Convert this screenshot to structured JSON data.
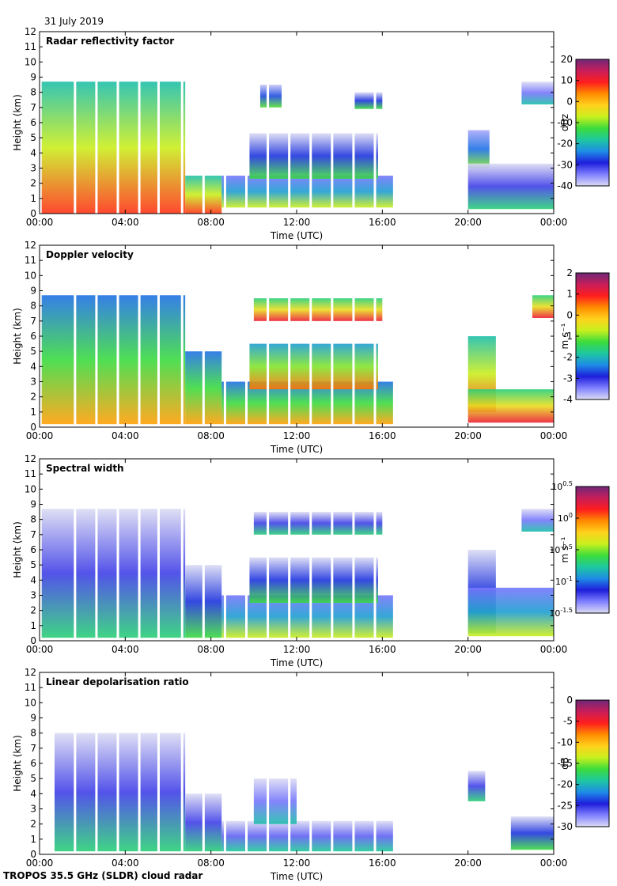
{
  "header": {
    "date": "31 July 2019"
  },
  "footer": {
    "instrument": "TROPOS 35.5 GHz (SLDR) cloud radar"
  },
  "colors": {
    "background": "#ffffff",
    "no_signal_grey": "#dcdcdc",
    "axis": "#000000"
  },
  "chart_data": [
    {
      "type": "heatmap",
      "title": "Radar reflectivity factor",
      "xlabel": "Time (UTC)",
      "ylabel": "Height (km)",
      "xlim": [
        0,
        24
      ],
      "ylim": [
        0,
        12
      ],
      "x_ticks": [
        "00:00",
        "04:00",
        "08:00",
        "12:00",
        "16:00",
        "20:00",
        "00:00"
      ],
      "y_ticks": [
        "0",
        "1",
        "2",
        "3",
        "4",
        "5",
        "6",
        "7",
        "8",
        "9",
        "10",
        "11",
        "12"
      ],
      "colorbar": {
        "label": "dBz",
        "range": [
          -40,
          20
        ],
        "ticks": [
          "20",
          "10",
          "0",
          "-10",
          "-20",
          "-30",
          "-40"
        ]
      },
      "cloud_regions": [
        {
          "t0": 0.1,
          "t1": 6.8,
          "base": 0.0,
          "top": 8.7,
          "value": 0.55
        },
        {
          "t0": 6.8,
          "t1": 8.5,
          "base": 0.0,
          "top": 2.5,
          "value": 0.55
        },
        {
          "t0": 8.5,
          "t1": 16.5,
          "base": 0.4,
          "top": 2.5,
          "value": 0.3
        },
        {
          "t0": 9.8,
          "t1": 15.8,
          "base": 2.3,
          "top": 5.3,
          "value": 0.2
        },
        {
          "t0": 10.3,
          "t1": 11.3,
          "base": 7.0,
          "top": 8.5,
          "value": 0.22
        },
        {
          "t0": 14.7,
          "t1": 16.0,
          "base": 6.9,
          "top": 8.0,
          "value": 0.2
        },
        {
          "t0": 20.0,
          "t1": 21.0,
          "base": 3.0,
          "top": 5.5,
          "value": 0.25
        },
        {
          "t0": 20.0,
          "t1": 24.0,
          "base": 0.3,
          "top": 3.3,
          "value": 0.15
        },
        {
          "t0": 22.5,
          "t1": 24.0,
          "base": 7.2,
          "top": 8.7,
          "value": 0.1
        }
      ]
    },
    {
      "type": "heatmap",
      "title": "Doppler velocity",
      "xlabel": "Time (UTC)",
      "ylabel": "Height (km)",
      "xlim": [
        0,
        24
      ],
      "ylim": [
        0,
        12
      ],
      "x_ticks": [
        "00:00",
        "04:00",
        "08:00",
        "12:00",
        "16:00",
        "20:00",
        "00:00"
      ],
      "y_ticks": [
        "0",
        "1",
        "2",
        "3",
        "4",
        "5",
        "6",
        "7",
        "8",
        "9",
        "10",
        "11",
        "12"
      ],
      "colorbar": {
        "label": "m s⁻¹",
        "range": [
          -4,
          2
        ],
        "ticks": [
          "2",
          "1",
          "0",
          "-1",
          "-2",
          "-3",
          "-4"
        ]
      },
      "cloud_regions": [
        {
          "t0": 0.1,
          "t1": 6.8,
          "base": 0.2,
          "top": 8.7,
          "value": 0.45
        },
        {
          "t0": 6.8,
          "t1": 8.5,
          "base": 0.2,
          "top": 5.0,
          "value": 0.45
        },
        {
          "t0": 8.5,
          "t1": 16.5,
          "base": 0.2,
          "top": 3.0,
          "value": 0.45
        },
        {
          "t0": 9.8,
          "t1": 15.8,
          "base": 2.5,
          "top": 5.5,
          "value": 0.5
        },
        {
          "t0": 10.0,
          "t1": 16.0,
          "base": 7.0,
          "top": 8.5,
          "value": 0.6
        },
        {
          "t0": 20.0,
          "t1": 21.3,
          "base": 1.0,
          "top": 6.0,
          "value": 0.55
        },
        {
          "t0": 20.0,
          "t1": 24.0,
          "base": 0.3,
          "top": 2.5,
          "value": 0.6
        },
        {
          "t0": 23.0,
          "t1": 24.0,
          "base": 7.2,
          "top": 8.7,
          "value": 0.6
        }
      ]
    },
    {
      "type": "heatmap",
      "title": "Spectral width",
      "xlabel": "Time (UTC)",
      "ylabel": "Height (km)",
      "xlim": [
        0,
        24
      ],
      "ylim": [
        0,
        12
      ],
      "x_ticks": [
        "00:00",
        "04:00",
        "08:00",
        "12:00",
        "16:00",
        "20:00",
        "00:00"
      ],
      "y_ticks": [
        "0",
        "1",
        "2",
        "3",
        "4",
        "5",
        "6",
        "7",
        "8",
        "9",
        "10",
        "11",
        "12"
      ],
      "colorbar": {
        "label": "m s⁻¹",
        "range": [
          -1.5,
          0.5
        ],
        "scale": "log10",
        "ticks": [
          {
            "base": "10",
            "exp": "0.5"
          },
          {
            "base": "10",
            "exp": "0"
          },
          {
            "base": "10",
            "exp": "-0.5"
          },
          {
            "base": "10",
            "exp": "-1"
          },
          {
            "base": "10",
            "exp": "-1.5"
          }
        ]
      },
      "cloud_regions": [
        {
          "t0": 0.1,
          "t1": 6.8,
          "base": 0.2,
          "top": 8.7,
          "value": 0.15
        },
        {
          "t0": 6.8,
          "t1": 8.5,
          "base": 0.2,
          "top": 5.0,
          "value": 0.2
        },
        {
          "t0": 8.5,
          "t1": 16.5,
          "base": 0.2,
          "top": 3.0,
          "value": 0.3
        },
        {
          "t0": 9.8,
          "t1": 15.8,
          "base": 2.5,
          "top": 5.5,
          "value": 0.2
        },
        {
          "t0": 10.0,
          "t1": 16.0,
          "base": 7.0,
          "top": 8.5,
          "value": 0.15
        },
        {
          "t0": 20.0,
          "t1": 21.3,
          "base": 0.5,
          "top": 6.0,
          "value": 0.2
        },
        {
          "t0": 20.0,
          "t1": 24.0,
          "base": 0.3,
          "top": 3.5,
          "value": 0.3
        },
        {
          "t0": 22.5,
          "t1": 24.0,
          "base": 7.2,
          "top": 8.7,
          "value": 0.1
        }
      ]
    },
    {
      "type": "heatmap",
      "title": "Linear depolarisation ratio",
      "xlabel": "Time (UTC)",
      "ylabel": "Height (km)",
      "xlim": [
        0,
        24
      ],
      "ylim": [
        0,
        12
      ],
      "x_ticks": [
        "00:00",
        "04:00",
        "08:00",
        "12:00",
        "16:00",
        "20:00",
        "00:00"
      ],
      "y_ticks": [
        "0",
        "1",
        "2",
        "3",
        "4",
        "5",
        "6",
        "7",
        "8",
        "9",
        "10",
        "11",
        "12"
      ],
      "colorbar": {
        "label": "dB",
        "range": [
          -30,
          0
        ],
        "ticks": [
          "0",
          "-5",
          "-10",
          "-15",
          "-20",
          "-25",
          "-30"
        ]
      },
      "cloud_regions": [
        {
          "t0": 0.7,
          "t1": 6.8,
          "base": 0.2,
          "top": 8.0,
          "value": 0.15
        },
        {
          "t0": 6.8,
          "t1": 8.5,
          "base": 0.2,
          "top": 4.0,
          "value": 0.15
        },
        {
          "t0": 8.5,
          "t1": 16.5,
          "base": 0.2,
          "top": 2.2,
          "value": 0.12
        },
        {
          "t0": 10.0,
          "t1": 12.0,
          "base": 2.0,
          "top": 5.0,
          "value": 0.1
        },
        {
          "t0": 20.0,
          "t1": 20.8,
          "base": 3.5,
          "top": 5.5,
          "value": 0.15
        },
        {
          "t0": 22.0,
          "t1": 24.0,
          "base": 0.3,
          "top": 2.5,
          "value": 0.2
        }
      ]
    }
  ]
}
